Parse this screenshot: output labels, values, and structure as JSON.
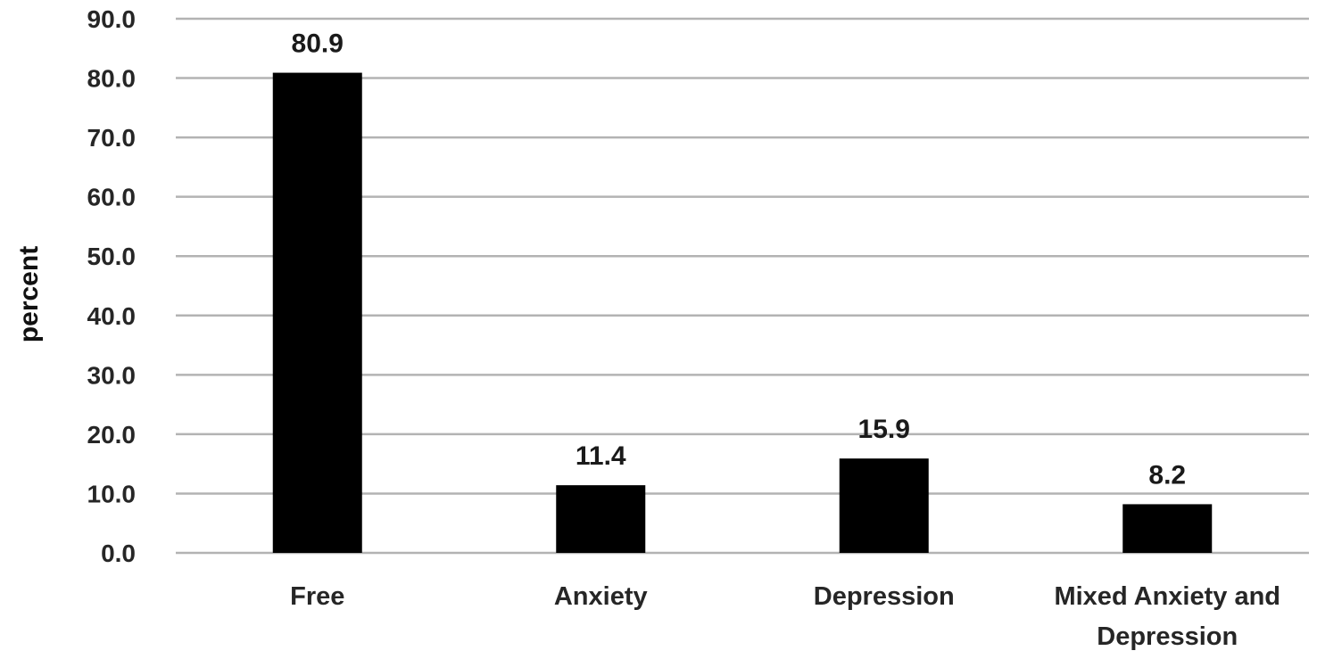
{
  "chart_data": {
    "type": "bar",
    "categories": [
      [
        "Free"
      ],
      [
        "Anxiety"
      ],
      [
        "Depression"
      ],
      [
        "Mixed Anxiety and",
        "Depression"
      ]
    ],
    "values": [
      80.9,
      11.4,
      15.9,
      8.2
    ],
    "value_labels": [
      "80.9",
      "11.4",
      "15.9",
      "8.2"
    ],
    "ylabel": "percent",
    "ylim": [
      0,
      90
    ],
    "yticks": [
      "0.0",
      "10.0",
      "20.0",
      "30.0",
      "40.0",
      "50.0",
      "60.0",
      "70.0",
      "80.0",
      "90.0"
    ],
    "grid": true,
    "bar_color": "#000000",
    "grid_color": "#b3b3b3"
  }
}
